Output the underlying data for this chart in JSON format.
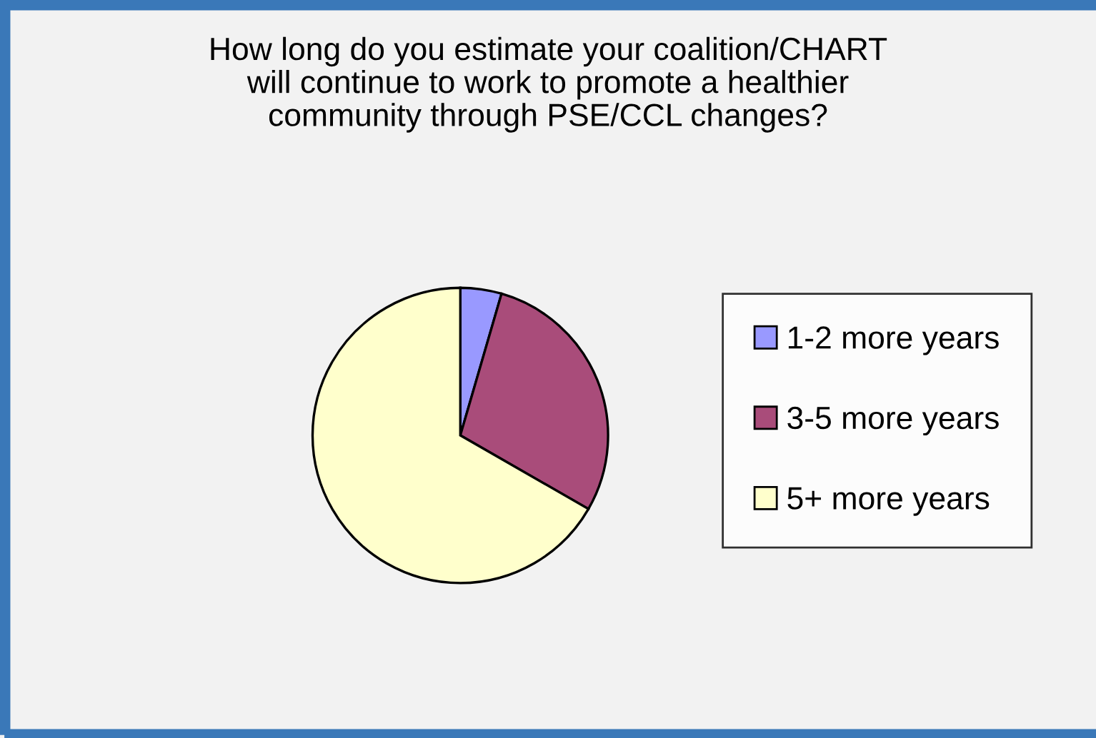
{
  "chart_data": {
    "type": "pie",
    "title": "How long do you estimate your coalition/CHART\nwill continue to work to promote a healthier\ncommunity through PSE/CCL changes?",
    "categories": [
      "1-2 more years",
      "3-5 more years",
      "5+ more years"
    ],
    "values": [
      4.5,
      28.8,
      66.7
    ],
    "colors": [
      "#9999ff",
      "#a94c7a",
      "#ffffcc"
    ],
    "legend": "right"
  }
}
